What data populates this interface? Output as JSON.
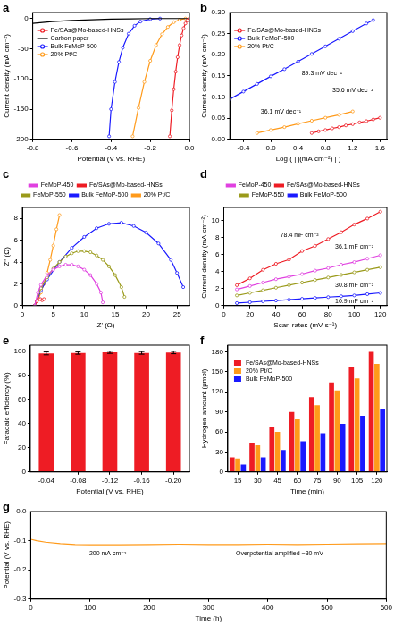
{
  "chart_data": [
    {
      "type": "line",
      "title": "a",
      "x_label": "Potential (V vs. RHE)",
      "y_label": "Current density (mA cm⁻²)",
      "xlim": [
        -0.8,
        0
      ],
      "xticks": [
        -0.8,
        -0.6,
        -0.4,
        -0.2,
        {
          "value": 0,
          "label": "0.0"
        }
      ],
      "ylim": [
        -200,
        10
      ],
      "yticks": [
        -200,
        -150,
        -100,
        -50,
        0
      ],
      "grid": false,
      "legend": "upper left",
      "series": [
        {
          "name": "Fe/SAs@Mo-based-HNSs",
          "color": "#ee1c24",
          "marker": "circle",
          "x": [
            0,
            -0.01,
            -0.02,
            -0.03,
            -0.04,
            -0.05,
            -0.06,
            -0.07,
            -0.08,
            -0.09,
            -0.1
          ],
          "values": [
            0,
            -3,
            -8,
            -16,
            -28,
            -44,
            -64,
            -88,
            -117,
            -152,
            -195
          ]
        },
        {
          "name": "Carbon paper",
          "color": "#000000",
          "x": [
            -0.8,
            -0.7,
            -0.6,
            -0.5,
            -0.4,
            -0.3,
            -0.2,
            -0.1,
            0
          ],
          "values": [
            -8,
            -5,
            -3,
            -2,
            -1,
            -0.5,
            0,
            0,
            0
          ]
        },
        {
          "name": "Bulk FeMoP-500",
          "color": "#1a1aff",
          "marker": "circle",
          "x": [
            -0.15,
            -0.2,
            -0.25,
            -0.28,
            -0.31,
            -0.34,
            -0.36,
            -0.38,
            -0.4,
            -0.41
          ],
          "values": [
            0,
            -1,
            -5,
            -12,
            -25,
            -48,
            -72,
            -105,
            -150,
            -195
          ]
        },
        {
          "name": "20% Pt/C",
          "color": "#ff9a1a",
          "marker": "circle",
          "x": [
            -0.02,
            -0.05,
            -0.08,
            -0.11,
            -0.14,
            -0.17,
            -0.2,
            -0.23,
            -0.26,
            -0.29
          ],
          "values": [
            0,
            -2,
            -6,
            -14,
            -26,
            -44,
            -70,
            -105,
            -148,
            -195
          ]
        }
      ]
    },
    {
      "type": "line",
      "title": "b",
      "x_label": "Log ( | j(mA cm⁻²) | )",
      "y_label": "Current density (mA cm⁻²)",
      "xlim": [
        -0.6,
        1.7
      ],
      "xticks": [
        -0.4,
        {
          "value": 0,
          "label": "0.0"
        },
        0.4,
        0.8,
        1.2,
        1.6
      ],
      "ylim": [
        0,
        0.3
      ],
      "yticks": [
        {
          "value": 0,
          "label": "0.00"
        },
        0.05,
        {
          "value": 0.1,
          "label": "0.10"
        },
        0.15,
        {
          "value": 0.2,
          "label": "0.20"
        },
        0.25,
        {
          "value": 0.3,
          "label": "0.30"
        }
      ],
      "grid": false,
      "legend": "upper left",
      "series": [
        {
          "name": "Fe/SAs@Mo-based-HNSs",
          "color": "#ee1c24",
          "marker": "circle",
          "x": [
            0.6,
            0.7,
            0.8,
            0.9,
            1.0,
            1.1,
            1.2,
            1.3,
            1.4,
            1.5,
            1.6
          ],
          "values": [
            0.015,
            0.019,
            0.022,
            0.026,
            0.029,
            0.033,
            0.036,
            0.04,
            0.043,
            0.047,
            0.051
          ]
        },
        {
          "name": "Bulk FeMoP-500",
          "color": "#1a1aff",
          "marker": "circle",
          "x": [
            -0.6,
            -0.4,
            -0.2,
            0,
            0.2,
            0.4,
            0.6,
            0.8,
            1.0,
            1.2,
            1.4,
            1.5
          ],
          "values": [
            0.095,
            0.113,
            0.131,
            0.149,
            0.166,
            0.184,
            0.202,
            0.22,
            0.238,
            0.256,
            0.274,
            0.282
          ]
        },
        {
          "name": "20% Pt/C",
          "color": "#ff9a1a",
          "marker": "circle",
          "x": [
            -0.2,
            0,
            0.2,
            0.4,
            0.6,
            0.8,
            1.0,
            1.2
          ],
          "values": [
            0.015,
            0.022,
            0.029,
            0.037,
            0.044,
            0.051,
            0.058,
            0.066
          ]
        }
      ],
      "annotations": [
        {
          "text": "89.3 mV dec⁻¹",
          "x": 0.75,
          "y": 0.155
        },
        {
          "text": "35.6 mV dec⁻¹",
          "x": 1.2,
          "y": 0.115
        },
        {
          "text": "36.1 mV dec⁻¹",
          "x": 0.15,
          "y": 0.065
        }
      ]
    },
    {
      "type": "line",
      "title": "c",
      "x_label": "Z' (Ω)",
      "y_label": "Z'' (Ω)",
      "xlim": [
        0,
        27
      ],
      "xticks": [
        0,
        5,
        10,
        15,
        20,
        25
      ],
      "ylim": [
        0,
        9
      ],
      "yticks": [
        0,
        2,
        4,
        6,
        8
      ],
      "grid": false,
      "legend": "top",
      "series": [
        {
          "name": "FeMoP-450",
          "color": "#e040e0",
          "marker": "circle",
          "x": [
            2,
            2.5,
            3,
            4,
            5,
            6,
            7,
            8,
            9,
            10,
            11,
            12,
            12.7,
            13
          ],
          "values": [
            0,
            1.2,
            1.9,
            2.8,
            3.3,
            3.6,
            3.75,
            3.75,
            3.6,
            3.3,
            2.8,
            2.0,
            1.2,
            0.3
          ]
        },
        {
          "name": "Fe/SAs@Mo-based-HNSs",
          "color": "#ee1c24",
          "marker": "circle",
          "x": [
            2,
            2.3,
            2.6,
            2.9,
            3.2,
            3.5
          ],
          "values": [
            0,
            0.4,
            0.6,
            0.6,
            0.5,
            0.6
          ]
        },
        {
          "name": "FeMoP-550",
          "color": "#9a9a1a",
          "marker": "circle",
          "x": [
            2,
            3,
            4,
            5,
            6,
            7,
            8,
            9,
            10,
            11,
            12,
            13,
            14,
            15,
            16,
            16.5
          ],
          "values": [
            0,
            1.6,
            2.6,
            3.4,
            4.0,
            4.5,
            4.8,
            5.0,
            5.0,
            4.9,
            4.6,
            4.2,
            3.6,
            2.8,
            1.7,
            0.8
          ]
        },
        {
          "name": "Bulk FeMoP-500",
          "color": "#1a1aff",
          "marker": "circle",
          "x": [
            2,
            3,
            4,
            6,
            8,
            10,
            12,
            14,
            16,
            18,
            20,
            22,
            24,
            25,
            26
          ],
          "values": [
            0,
            1.4,
            2.4,
            4.0,
            5.3,
            6.3,
            7.1,
            7.5,
            7.6,
            7.3,
            6.7,
            5.7,
            4.2,
            3.0,
            1.7
          ]
        },
        {
          "name": "20% Pt/C",
          "color": "#ff9a1a",
          "marker": "circle",
          "x": [
            2,
            2.5,
            3,
            3.5,
            4,
            4.5,
            5,
            5.5,
            6
          ],
          "values": [
            0,
            0.5,
            1.2,
            2.0,
            3.0,
            4.2,
            5.5,
            7.0,
            8.3
          ]
        }
      ]
    },
    {
      "type": "line",
      "title": "d",
      "x_label": "Scan rates (mV s⁻¹)",
      "y_label": "Current density (mA cm⁻²)",
      "xlim": [
        0,
        125
      ],
      "xticks": [
        0,
        20,
        40,
        60,
        80,
        100,
        120
      ],
      "ylim": [
        0,
        11.5
      ],
      "yticks": [
        0,
        2,
        4,
        6,
        8,
        10
      ],
      "grid": false,
      "legend": "top",
      "series": [
        {
          "name": "FeMoP-450",
          "color": "#e040e0",
          "marker": "circle",
          "x": [
            10,
            20,
            30,
            40,
            50,
            60,
            70,
            80,
            90,
            100,
            110,
            120
          ],
          "values": [
            1.9,
            2.3,
            2.7,
            3.1,
            3.4,
            3.7,
            4.1,
            4.4,
            4.8,
            5.1,
            5.5,
            5.9
          ]
        },
        {
          "name": "Fe/SAs@Mo-based-HNSs",
          "color": "#ee1c24",
          "marker": "circle",
          "x": [
            10,
            20,
            30,
            40,
            50,
            60,
            70,
            80,
            90,
            100,
            110,
            120
          ],
          "values": [
            2.4,
            3.2,
            4.2,
            4.9,
            5.4,
            6.4,
            7.0,
            7.8,
            8.6,
            9.5,
            10.2,
            11.0
          ]
        },
        {
          "name": "FeMoP-550",
          "color": "#9a9a1a",
          "marker": "circle",
          "x": [
            10,
            20,
            30,
            40,
            50,
            60,
            70,
            80,
            90,
            100,
            110,
            120
          ],
          "values": [
            1.2,
            1.5,
            1.8,
            2.1,
            2.4,
            2.7,
            3.0,
            3.3,
            3.6,
            3.9,
            4.2,
            4.5
          ]
        },
        {
          "name": "Bulk FeMoP-500",
          "color": "#1a1aff",
          "marker": "circle",
          "x": [
            10,
            20,
            30,
            40,
            50,
            60,
            70,
            80,
            90,
            100,
            110,
            120
          ],
          "values": [
            0.3,
            0.4,
            0.5,
            0.6,
            0.7,
            0.8,
            0.9,
            1.0,
            1.1,
            1.2,
            1.35,
            1.5
          ]
        }
      ],
      "annotations": [
        {
          "text": "78.4 mF cm⁻²",
          "x": 58,
          "y": 8.2
        },
        {
          "text": "36.1 mF cm⁻²",
          "x": 100,
          "y": 6.85
        },
        {
          "text": "30.8 mF cm⁻²",
          "x": 100,
          "y": 2.4
        },
        {
          "text": "10.9 mF cm⁻²",
          "x": 100,
          "y": 0.45
        }
      ]
    },
    {
      "type": "bar",
      "title": "e",
      "x_label": "Potential (V vs. RHE)",
      "y_label": "Faradaic efficiency (%)",
      "categories": [
        "-0.04",
        "-0.08",
        "-0.12",
        "-0.16",
        "-0.20"
      ],
      "values": [
        98.2,
        98.5,
        99.1,
        98.6,
        98.9
      ],
      "errors": [
        1.2,
        1.0,
        0.9,
        1.1,
        1.0
      ],
      "color": "#ee1c24",
      "ylim": [
        0,
        105
      ],
      "yticks": [
        0,
        20,
        40,
        60,
        80,
        100
      ],
      "grid": false
    },
    {
      "type": "bar",
      "title": "f",
      "x_label": "Time (min)",
      "y_label": "Hydrogen amount (μmol)",
      "categories": [
        "15",
        "30",
        "45",
        "60",
        "75",
        "90",
        "105",
        "120"
      ],
      "ylim": [
        0,
        190
      ],
      "yticks": [
        0,
        30,
        60,
        90,
        120,
        150,
        180
      ],
      "grid": false,
      "legend": "upper left",
      "series": [
        {
          "name": "Fe/SAs@Mo-based-HNSs",
          "color": "#ee1c24",
          "values": [
            22,
            44,
            68,
            90,
            112,
            134,
            158,
            180
          ]
        },
        {
          "name": "20% Pt/C",
          "color": "#ff9a1a",
          "values": [
            20,
            40,
            60,
            80,
            100,
            122,
            140,
            162
          ]
        },
        {
          "name": "Bulk FeMoP-500",
          "color": "#1a1aff",
          "values": [
            11,
            22,
            33,
            46,
            58,
            72,
            84,
            95
          ]
        }
      ]
    },
    {
      "type": "line",
      "title": "g",
      "x_label": "Time (h)",
      "y_label": "Potential (V vs. RHE)",
      "xlim": [
        0,
        600
      ],
      "xticks": [
        0,
        100,
        200,
        300,
        400,
        500,
        600
      ],
      "ylim": [
        -0.3,
        0
      ],
      "yticks": [
        -0.3,
        -0.2,
        -0.1,
        {
          "value": 0,
          "label": "0.0"
        }
      ],
      "grid": false,
      "color": "#ff9a1a",
      "x": [
        0,
        10,
        25,
        50,
        75,
        100,
        150,
        200,
        250,
        300,
        350,
        400,
        450,
        500,
        550,
        600
      ],
      "values": [
        -0.095,
        -0.1,
        -0.105,
        -0.11,
        -0.113,
        -0.114,
        -0.114,
        -0.113,
        -0.112,
        -0.113,
        -0.113,
        -0.112,
        -0.113,
        -0.112,
        -0.111,
        -0.11
      ],
      "annotations": [
        {
          "text": "200 mA cm⁻²",
          "x": 130,
          "y": -0.145
        },
        {
          "text": "Overpotential amplified ~30 mV",
          "x": 420,
          "y": -0.145
        }
      ]
    }
  ]
}
